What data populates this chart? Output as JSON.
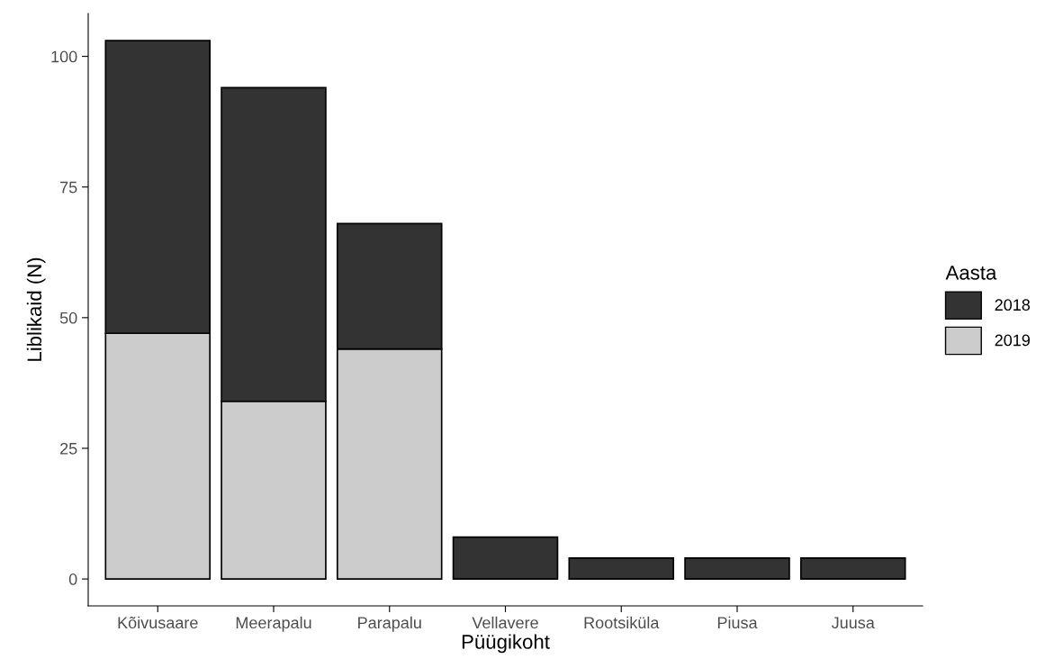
{
  "chart_data": {
    "type": "bar",
    "xlabel": "Püügikoht",
    "ylabel": "Liblikaid (N)",
    "legend_title": "Aasta",
    "categories": [
      "Kõivusaare",
      "Meerapalu",
      "Parapalu",
      "Vellavere",
      "Rootsiküla",
      "Piusa",
      "Juusa"
    ],
    "stacked": true,
    "series": [
      {
        "name": "2019",
        "color": "#cccccc",
        "values": [
          47,
          34,
          44,
          0,
          0,
          0,
          0
        ]
      },
      {
        "name": "2018",
        "color": "#333333",
        "values": [
          56,
          60,
          24,
          8,
          4,
          4,
          4
        ]
      }
    ],
    "ylim": [
      -5.15,
      108.2
    ],
    "yticks": [
      0,
      25,
      50,
      75,
      100
    ],
    "grid": false,
    "legend": "right"
  }
}
